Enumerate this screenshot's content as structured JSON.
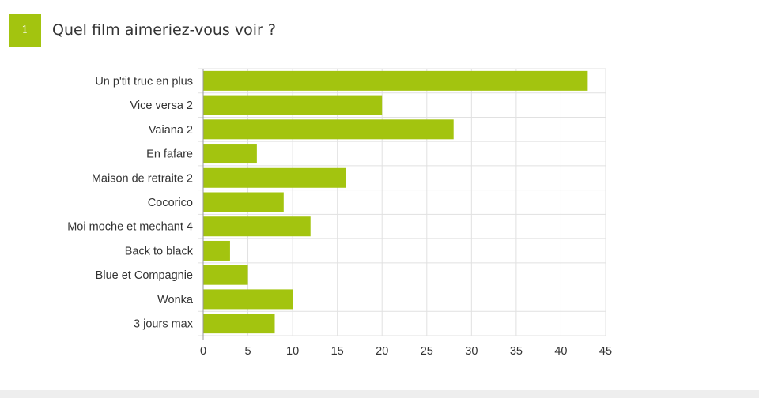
{
  "question": {
    "number": "1",
    "title": "Quel film aimeriez-vous voir ?"
  },
  "colors": {
    "accent": "#a3c40f",
    "bar": "#a3c40f",
    "grid": "#e1e1e1",
    "axis": "#999999",
    "text": "#333333",
    "footer": "#eeeeee"
  },
  "chart_data": {
    "type": "bar",
    "orientation": "horizontal",
    "categories": [
      "Un p'tit truc en plus",
      "Vice versa 2",
      "Vaiana 2",
      "En fafare",
      "Maison de retraite 2",
      "Cocorico",
      "Moi moche et mechant 4",
      "Back to black",
      "Blue et Compagnie",
      "Wonka",
      "3 jours max"
    ],
    "values": [
      43,
      20,
      28,
      6,
      16,
      9,
      12,
      3,
      5,
      10,
      8
    ],
    "xlim": [
      0,
      45
    ],
    "xticks": [
      "0",
      "5",
      "10",
      "15",
      "20",
      "25",
      "30",
      "35",
      "40",
      "45"
    ],
    "grid": true
  }
}
